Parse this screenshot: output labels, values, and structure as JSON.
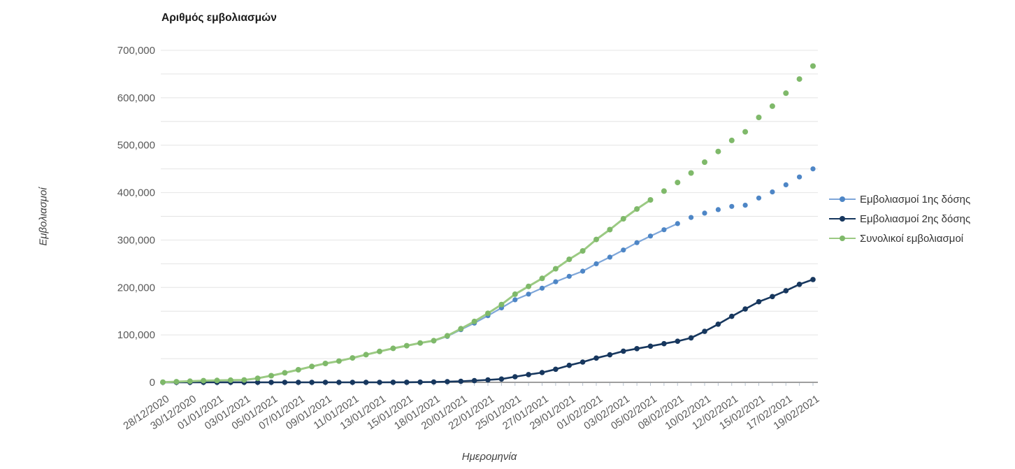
{
  "chart_data": {
    "type": "line",
    "title": "Αριθμός εμβολιασμών",
    "xlabel": "Ημερομηνία",
    "ylabel": "Εμβολιασμοί",
    "ylim": [
      0,
      700000
    ],
    "gridline_step": 50000,
    "ytick_label_step": 100000,
    "grid": "horizontal only",
    "legend_position": "right-middle",
    "x_labels_rotated": true,
    "axis_label_color": "#595959",
    "gridline_color": "#e4e4e4",
    "axis_line_color": "#7f7f7f",
    "x": [
      "28/12/2020",
      "29/12/2020",
      "30/12/2020",
      "31/12/2020",
      "01/01/2021",
      "02/01/2021",
      "03/01/2021",
      "04/01/2021",
      "05/01/2021",
      "06/01/2021",
      "07/01/2021",
      "08/01/2021",
      "09/01/2021",
      "10/01/2021",
      "11/01/2021",
      "12/01/2021",
      "13/01/2021",
      "14/01/2021",
      "15/01/2021",
      "16/01/2021",
      "18/01/2021",
      "19/01/2021",
      "20/01/2021",
      "21/01/2021",
      "22/01/2021",
      "23/01/2021",
      "25/01/2021",
      "26/01/2021",
      "27/01/2021",
      "28/01/2021",
      "29/01/2021",
      "30/01/2021",
      "01/02/2021",
      "02/02/2021",
      "03/02/2021",
      "04/02/2021",
      "05/02/2021",
      "06/02/2021",
      "08/02/2021",
      "09/02/2021",
      "10/02/2021",
      "11/02/2021",
      "12/02/2021",
      "13/02/2021",
      "15/02/2021",
      "16/02/2021",
      "17/02/2021",
      "18/02/2021",
      "19/02/2021"
    ],
    "xtick_labels": [
      "28/12/2020",
      "30/12/2020",
      "01/01/2021",
      "03/01/2021",
      "05/01/2021",
      "07/01/2021",
      "09/01/2021",
      "11/01/2021",
      "13/01/2021",
      "15/01/2021",
      "18/01/2021",
      "20/01/2021",
      "22/01/2021",
      "25/01/2021",
      "27/01/2021",
      "29/01/2021",
      "01/02/2021",
      "03/02/2021",
      "05/02/2021",
      "08/02/2021",
      "10/02/2021",
      "12/02/2021",
      "15/02/2021",
      "17/02/2021",
      "19/02/2021"
    ],
    "ytick_labels": [
      "0",
      "100,000",
      "200,000",
      "300,000",
      "400,000",
      "500,000",
      "600,000",
      "700,000"
    ],
    "series": [
      {
        "name": "Εμβολιασμοί 1ης δόσης",
        "line_color": "#7EA6D9",
        "marker_color": "#4E86C6",
        "line_until": "08/02/2021",
        "values": [
          400,
          1300,
          2350,
          3600,
          4000,
          4500,
          5000,
          8600,
          14000,
          20000,
          26500,
          33400,
          39800,
          44800,
          51500,
          58300,
          65100,
          71500,
          77000,
          82600,
          87200,
          96800,
          110900,
          124800,
          140500,
          157000,
          174000,
          186000,
          198500,
          212000,
          223500,
          234300,
          250000,
          264000,
          279000,
          294500,
          308400,
          321700,
          334600,
          347600,
          356800,
          364200,
          371000,
          373500,
          388600,
          401500,
          416400,
          432900,
          450100
        ]
      },
      {
        "name": "Εμβολιασμοί 2ης δόσης",
        "line_color": "#17375E",
        "marker_color": "#17375E",
        "line_until": null,
        "values": [
          0,
          0,
          0,
          0,
          0,
          0,
          0,
          0,
          0,
          0,
          0,
          0,
          0,
          0,
          0,
          0,
          0,
          100,
          200,
          400,
          700,
          1300,
          2200,
          3500,
          5100,
          7000,
          11800,
          16400,
          20600,
          27500,
          35800,
          42700,
          51200,
          58000,
          65800,
          71000,
          76200,
          81500,
          86700,
          93800,
          107400,
          122600,
          139100,
          154600,
          169900,
          180800,
          193200,
          206600,
          216800
        ]
      },
      {
        "name": "Συνολικοί εμβολιασμοί",
        "line_color": "#9BCA83",
        "marker_color": "#7FB96A",
        "line_until": "05/02/2021",
        "values": [
          400,
          1300,
          2350,
          3600,
          4000,
          4500,
          5000,
          8600,
          14000,
          20000,
          26500,
          33400,
          39800,
          44800,
          51500,
          58300,
          65100,
          71600,
          77200,
          83000,
          87900,
          98100,
          113100,
          128300,
          145600,
          164000,
          185800,
          202400,
          219100,
          239500,
          259300,
          277000,
          301200,
          322000,
          344800,
          365500,
          384600,
          403200,
          421300,
          441400,
          464200,
          486800,
          510100,
          528100,
          558500,
          582300,
          609600,
          639500,
          666900
        ]
      }
    ]
  }
}
